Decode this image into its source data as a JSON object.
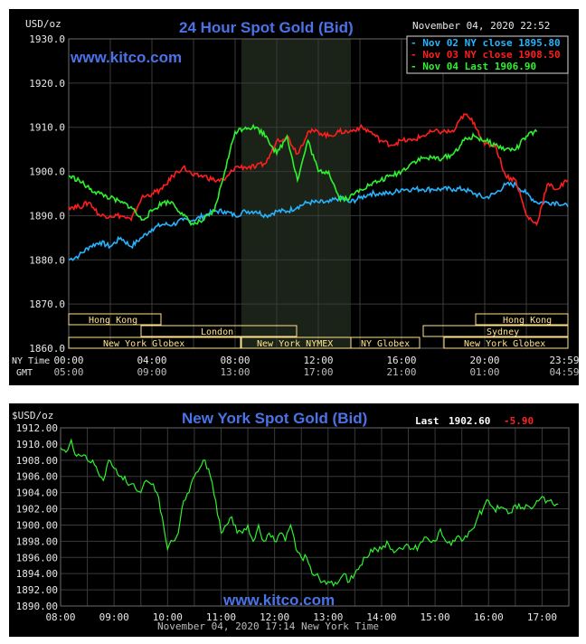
{
  "top": {
    "unit": "USD/oz",
    "title": "24 Hour Spot Gold (Bid)",
    "timestamp": "November 04, 2020 22:52",
    "brand": "www.kitco.com",
    "legend": [
      {
        "label": "Nov 02 NY close 1895.80",
        "color": "#27b4ff"
      },
      {
        "label": "Nov 03 NY close 1908.50",
        "color": "#ff1e1e"
      },
      {
        "label": "Nov 04 Last 1906.90",
        "color": "#2ef22e"
      }
    ],
    "row_label_ny": "NY Time",
    "row_label_gmt": "GMT",
    "ny_ticks": [
      "00:00",
      "04:00",
      "08:00",
      "12:00",
      "16:00",
      "20:00",
      "23:59"
    ],
    "gmt_ticks": [
      "05:00",
      "09:00",
      "13:00",
      "17:00",
      "21:00",
      "01:00",
      "04:59"
    ],
    "markets": {
      "hong_kong": "Hong Kong",
      "london": "London",
      "ny_globex": "New York Globex",
      "ny_nymex": "New York NYMEX",
      "ny_globex_short": "NY Globex",
      "sydney": "Sydney"
    }
  },
  "bottom": {
    "unit": "$USD/oz",
    "title": "New York Spot Gold (Bid)",
    "last_label": "Last",
    "last_value": "1902.60",
    "change": "-5.90",
    "change_color": "#ff2020",
    "brand": "www.kitco.com",
    "footer": "November 04, 2020 17:14 New York Time"
  },
  "chart_data": [
    {
      "type": "line",
      "title": "24 Hour Spot Gold (Bid)",
      "ylabel": "USD/oz",
      "ylim": [
        1860,
        1930
      ],
      "yticks": [
        "1930.0",
        "1920.0",
        "1910.0",
        "1900.0",
        "1890.0",
        "1880.0",
        "1870.0",
        "1860.0"
      ],
      "xlim": [
        0,
        24
      ],
      "grid": true,
      "legend_position": "top-right",
      "series": [
        {
          "name": "Nov 02",
          "color": "#27b4ff",
          "x": [
            0,
            0.5,
            1,
            1.5,
            2,
            2.5,
            3,
            3.5,
            4,
            4.5,
            5,
            5.5,
            6,
            6.5,
            7,
            7.5,
            8,
            8.5,
            9,
            9.5,
            10,
            10.5,
            11,
            11.5,
            12,
            12.5,
            13,
            13.5,
            14,
            14.5,
            15,
            15.5,
            16,
            16.5,
            17,
            17.5,
            18,
            18.5,
            19,
            19.5,
            20,
            20.5,
            21,
            21.5,
            22,
            22.5,
            23,
            23.5,
            24
          ],
          "values": [
            1880,
            1881,
            1883,
            1884,
            1883,
            1885,
            1883,
            1885,
            1887,
            1888,
            1888,
            1889,
            1889,
            1890,
            1891,
            1891,
            1890,
            1891,
            1891,
            1890,
            1891,
            1891,
            1892,
            1893,
            1893,
            1893,
            1894,
            1893,
            1894,
            1895,
            1895,
            1895,
            1896,
            1896,
            1896,
            1896,
            1896,
            1896,
            1896,
            1895,
            1894,
            1895,
            1897,
            1897,
            1895,
            1893,
            1893,
            1893,
            1892
          ]
        },
        {
          "name": "Nov 03",
          "color": "#ff1e1e",
          "x": [
            0,
            0.5,
            1,
            1.5,
            2,
            2.5,
            3,
            3.5,
            4,
            4.5,
            5,
            5.5,
            6,
            6.5,
            7,
            7.5,
            8,
            8.5,
            9,
            9.5,
            10,
            10.5,
            11,
            11.5,
            12,
            12.5,
            13,
            13.5,
            14,
            14.5,
            15,
            15.5,
            16,
            16.5,
            17,
            17.5,
            18,
            18.5,
            19,
            19.5,
            20,
            20.5,
            21,
            21.5,
            22,
            22.5,
            23,
            23.5,
            24
          ],
          "values": [
            1892,
            1892,
            1893,
            1890,
            1890,
            1890,
            1889,
            1894,
            1895,
            1896,
            1899,
            1901,
            1899,
            1899,
            1898,
            1898,
            1901,
            1901,
            1901,
            1902,
            1907,
            1908,
            1904,
            1909,
            1909,
            1908,
            1909,
            1909,
            1910,
            1909,
            1907,
            1906,
            1907,
            1907,
            1908,
            1909,
            1909,
            1909,
            1913,
            1911,
            1906,
            1906,
            1899,
            1898,
            1890,
            1888,
            1897,
            1896,
            1898
          ]
        },
        {
          "name": "Nov 04",
          "color": "#2ef22e",
          "x": [
            0,
            0.5,
            1,
            1.5,
            2,
            2.5,
            3,
            3.5,
            4,
            4.5,
            5,
            5.5,
            6,
            6.5,
            7,
            7.5,
            8,
            8.5,
            9,
            9.5,
            10,
            10.5,
            11,
            11.5,
            12,
            12.5,
            13,
            13.5,
            14,
            14.5,
            15,
            15.5,
            16,
            16.5,
            17,
            17.5,
            18,
            18.5,
            19,
            19.5,
            20,
            20.5,
            21,
            21.5,
            22,
            22.5
          ],
          "values": [
            1899,
            1898,
            1896,
            1895,
            1894,
            1893,
            1892,
            1889,
            1891,
            1893,
            1893,
            1890,
            1888,
            1889,
            1891,
            1900,
            1909,
            1910,
            1910,
            1908,
            1904,
            1908,
            1898,
            1907,
            1900,
            1900,
            1894,
            1894,
            1896,
            1897,
            1898,
            1899,
            1900,
            1902,
            1903,
            1903,
            1903,
            1904,
            1907,
            1908,
            1907,
            1906,
            1905,
            1905,
            1908,
            1909
          ]
        }
      ],
      "annotations": [
        "www.kitco.com",
        "November 04, 2020 22:52"
      ]
    },
    {
      "type": "line",
      "title": "New York Spot Gold (Bid)",
      "ylabel": "$USD/oz",
      "ylim": [
        1890,
        1912
      ],
      "yticks": [
        "1912.00",
        "1910.00",
        "1908.00",
        "1906.00",
        "1904.00",
        "1902.00",
        "1900.00",
        "1898.00",
        "1896.00",
        "1894.00",
        "1892.00",
        "1890.00"
      ],
      "xlim": [
        8,
        17.5
      ],
      "xticks": [
        "08:00",
        "09:00",
        "10:00",
        "11:00",
        "12:00",
        "13:00",
        "14:00",
        "15:00",
        "16:00",
        "17:00"
      ],
      "grid": true,
      "series": [
        {
          "name": "",
          "color": "#2ef22e",
          "x": [
            8.0,
            8.1,
            8.2,
            8.3,
            8.4,
            8.5,
            8.6,
            8.7,
            8.8,
            8.9,
            9.0,
            9.1,
            9.2,
            9.3,
            9.4,
            9.5,
            9.6,
            9.7,
            9.8,
            9.9,
            10.0,
            10.1,
            10.2,
            10.3,
            10.4,
            10.5,
            10.6,
            10.7,
            10.8,
            10.9,
            11.0,
            11.1,
            11.2,
            11.3,
            11.4,
            11.5,
            11.6,
            11.7,
            11.8,
            11.9,
            12.0,
            12.1,
            12.2,
            12.3,
            12.4,
            12.5,
            12.6,
            12.7,
            12.8,
            12.9,
            13.0,
            13.1,
            13.2,
            13.3,
            13.4,
            13.5,
            13.6,
            13.7,
            13.8,
            13.9,
            14.0,
            14.1,
            14.2,
            14.3,
            14.4,
            14.5,
            14.6,
            14.7,
            14.8,
            14.9,
            15.0,
            15.1,
            15.2,
            15.3,
            15.4,
            15.5,
            15.6,
            15.7,
            15.8,
            15.9,
            16.0,
            16.1,
            16.2,
            16.3,
            16.4,
            16.5,
            16.6,
            16.7,
            16.8,
            16.9,
            17.0,
            17.1,
            17.2,
            17.3
          ],
          "values": [
            1909.5,
            1909,
            1910.5,
            1908.5,
            1908.5,
            1908,
            1908,
            1906.5,
            1905.5,
            1908,
            1907,
            1906,
            1906,
            1905,
            1904.5,
            1904,
            1905.5,
            1905,
            1904,
            1901,
            1897,
            1898,
            1899,
            1903,
            1904,
            1906,
            1907,
            1908,
            1906,
            1903,
            1899,
            1900,
            1901,
            1899,
            1899,
            1900,
            1898,
            1900,
            1898,
            1899,
            1898,
            1899,
            1898,
            1900,
            1897,
            1896,
            1896,
            1894,
            1894,
            1893,
            1893,
            1892.5,
            1893,
            1894,
            1893,
            1894,
            1895,
            1896,
            1897,
            1897,
            1897,
            1898,
            1897,
            1897,
            1897,
            1897.5,
            1897,
            1897.5,
            1898.5,
            1898,
            1898,
            1899.5,
            1898,
            1897.5,
            1898.5,
            1898,
            1898.5,
            1899.5,
            1901,
            1902,
            1903,
            1902,
            1902,
            1902,
            1901.5,
            1902.5,
            1902,
            1902.5,
            1902,
            1903,
            1903.5,
            1903,
            1902.6,
            1902.6
          ]
        }
      ],
      "annotations": [
        "www.kitco.com"
      ]
    }
  ]
}
